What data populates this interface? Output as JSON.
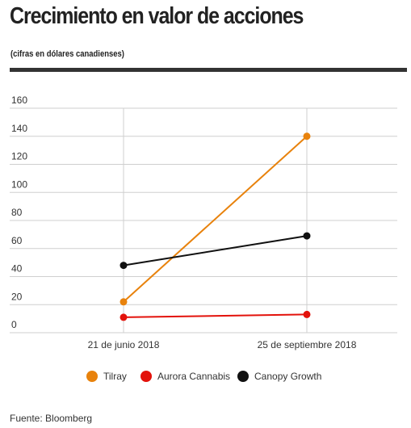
{
  "title": "Crecimiento en valor de acciones",
  "subtitle": "(cifras en dólares canadienses)",
  "source": "Fuente: Bloomberg",
  "chart_data": {
    "type": "line",
    "x": [
      "21 de junio 2018",
      "25 de septiembre 2018"
    ],
    "yticks": [
      0,
      20,
      40,
      60,
      80,
      100,
      120,
      140,
      160
    ],
    "ylim": [
      0,
      160
    ],
    "grid": true,
    "legend_position": "bottom",
    "series": [
      {
        "name": "Tilray",
        "color": "#e8820c",
        "values": [
          22,
          140
        ]
      },
      {
        "name": "Aurora Cannabis",
        "color": "#e3120b",
        "values": [
          11,
          13
        ]
      },
      {
        "name": "Canopy Growth",
        "color": "#111111",
        "values": [
          48,
          69
        ]
      }
    ]
  }
}
